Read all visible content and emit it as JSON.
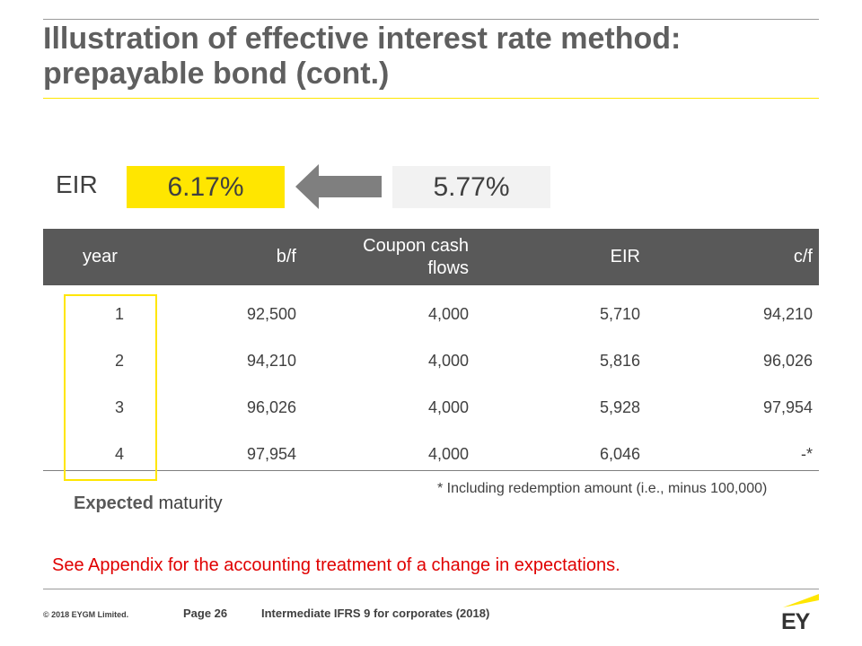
{
  "slide": {
    "title": "Illustration of effective interest rate method: prepayable bond (cont.)"
  },
  "eir": {
    "label": "EIR",
    "new_rate": "6.17%",
    "old_rate": "5.77%"
  },
  "table": {
    "headers": [
      "year",
      "b/f",
      "Coupon cash flows",
      "EIR",
      "c/f"
    ],
    "rows": [
      [
        "1",
        "92,500",
        "4,000",
        "5,710",
        "94,210"
      ],
      [
        "2",
        "94,210",
        "4,000",
        "5,816",
        "96,026"
      ],
      [
        "3",
        "96,026",
        "4,000",
        "5,928",
        "97,954"
      ],
      [
        "4",
        "97,954",
        "4,000",
        "6,046",
        "-*"
      ]
    ]
  },
  "notes": {
    "footnote": "* Including redemption amount (i.e., minus 100,000)",
    "expected_bold": "Expected",
    "expected_rest": " maturity",
    "appendix": "See Appendix for the accounting treatment of a change in expectations."
  },
  "footer": {
    "copyright": "© 2018 EYGM Limited.",
    "page": "Page 26",
    "course": "Intermediate IFRS 9 for corporates (2018)",
    "logo_text": "EY"
  },
  "colors": {
    "accent": "#ffe600",
    "header_bg": "#595959",
    "old_rate_bg": "#f2f2f2",
    "appendix_text": "#e00000"
  }
}
